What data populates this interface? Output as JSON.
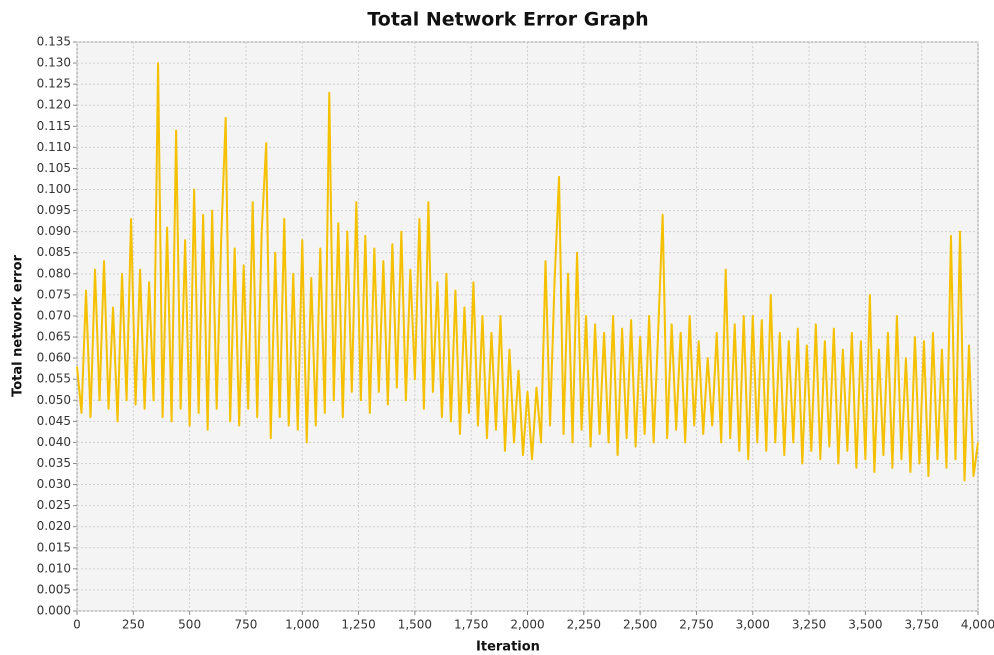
{
  "chart_data": {
    "type": "line",
    "title": "Total Network Error Graph",
    "x_label": "Iteration",
    "y_label": "Total network error",
    "grid": true,
    "xlim": [
      0,
      4000
    ],
    "ylim": [
      0,
      0.135
    ],
    "xticks": [
      0,
      250,
      500,
      750,
      {
        "value": 1000,
        "label": "1,000"
      },
      {
        "value": 1250,
        "label": "1,250"
      },
      {
        "value": 1500,
        "label": "1,500"
      },
      {
        "value": 1750,
        "label": "1,750"
      },
      {
        "value": 2000,
        "label": "2,000"
      },
      {
        "value": 2250,
        "label": "2,250"
      },
      {
        "value": 2500,
        "label": "2,500"
      },
      {
        "value": 2750,
        "label": "2,750"
      },
      {
        "value": 3000,
        "label": "3,000"
      },
      {
        "value": 3250,
        "label": "3,250"
      },
      {
        "value": 3500,
        "label": "3,500"
      },
      {
        "value": 3750,
        "label": "3,750"
      },
      {
        "value": 4000,
        "label": "4,000"
      }
    ],
    "yticks": [
      {
        "value": 0,
        "label": "0.000"
      },
      {
        "value": 0.005,
        "label": "0.005"
      },
      {
        "value": 0.01,
        "label": "0.010"
      },
      {
        "value": 0.015,
        "label": "0.015"
      },
      {
        "value": 0.02,
        "label": "0.020"
      },
      {
        "value": 0.025,
        "label": "0.025"
      },
      {
        "value": 0.03,
        "label": "0.030"
      },
      {
        "value": 0.035,
        "label": "0.035"
      },
      {
        "value": 0.04,
        "label": "0.040"
      },
      {
        "value": 0.045,
        "label": "0.045"
      },
      {
        "value": 0.05,
        "label": "0.050"
      },
      {
        "value": 0.055,
        "label": "0.055"
      },
      {
        "value": 0.06,
        "label": "0.060"
      },
      {
        "value": 0.065,
        "label": "0.065"
      },
      {
        "value": 0.07,
        "label": "0.070"
      },
      {
        "value": 0.075,
        "label": "0.075"
      },
      {
        "value": 0.08,
        "label": "0.080"
      },
      {
        "value": 0.085,
        "label": "0.085"
      },
      {
        "value": 0.09,
        "label": "0.090"
      },
      {
        "value": 0.095,
        "label": "0.095"
      },
      {
        "value": 0.1,
        "label": "0.100"
      },
      {
        "value": 0.105,
        "label": "0.105"
      },
      {
        "value": 0.11,
        "label": "0.110"
      },
      {
        "value": 0.115,
        "label": "0.115"
      },
      {
        "value": 0.12,
        "label": "0.120"
      },
      {
        "value": 0.125,
        "label": "0.125"
      },
      {
        "value": 0.13,
        "label": "0.130"
      },
      {
        "value": 0.135,
        "label": "0.135"
      }
    ],
    "x": [
      0,
      20,
      40,
      60,
      80,
      100,
      120,
      140,
      160,
      180,
      200,
      220,
      240,
      260,
      280,
      300,
      320,
      340,
      360,
      380,
      400,
      420,
      440,
      460,
      480,
      500,
      520,
      540,
      560,
      580,
      600,
      620,
      640,
      660,
      680,
      700,
      720,
      740,
      760,
      780,
      800,
      820,
      840,
      860,
      880,
      900,
      920,
      940,
      960,
      980,
      1000,
      1020,
      1040,
      1060,
      1080,
      1100,
      1120,
      1140,
      1160,
      1180,
      1200,
      1220,
      1240,
      1260,
      1280,
      1300,
      1320,
      1340,
      1360,
      1380,
      1400,
      1420,
      1440,
      1460,
      1480,
      1500,
      1520,
      1540,
      1560,
      1580,
      1600,
      1620,
      1640,
      1660,
      1680,
      1700,
      1720,
      1740,
      1760,
      1780,
      1800,
      1820,
      1840,
      1860,
      1880,
      1900,
      1920,
      1940,
      1960,
      1980,
      2000,
      2020,
      2040,
      2060,
      2080,
      2100,
      2120,
      2140,
      2160,
      2180,
      2200,
      2220,
      2240,
      2260,
      2280,
      2300,
      2320,
      2340,
      2360,
      2380,
      2400,
      2420,
      2440,
      2460,
      2480,
      2500,
      2520,
      2540,
      2560,
      2580,
      2600,
      2620,
      2640,
      2660,
      2680,
      2700,
      2720,
      2740,
      2760,
      2780,
      2800,
      2820,
      2840,
      2860,
      2880,
      2900,
      2920,
      2940,
      2960,
      2980,
      3000,
      3020,
      3040,
      3060,
      3080,
      3100,
      3120,
      3140,
      3160,
      3180,
      3200,
      3220,
      3240,
      3260,
      3280,
      3300,
      3320,
      3340,
      3360,
      3380,
      3400,
      3420,
      3440,
      3460,
      3480,
      3500,
      3520,
      3540,
      3560,
      3580,
      3600,
      3620,
      3640,
      3660,
      3680,
      3700,
      3720,
      3740,
      3760,
      3780,
      3800,
      3820,
      3840,
      3860,
      3880,
      3900,
      3920,
      3940,
      3960,
      3980,
      4000
    ],
    "series": [
      {
        "color": "#f5c000",
        "values": [
          0.058,
          0.047,
          0.076,
          0.046,
          0.081,
          0.05,
          0.083,
          0.048,
          0.072,
          0.045,
          0.08,
          0.05,
          0.093,
          0.049,
          0.081,
          0.048,
          0.078,
          0.05,
          0.13,
          0.046,
          0.091,
          0.045,
          0.114,
          0.048,
          0.088,
          0.044,
          0.1,
          0.047,
          0.094,
          0.043,
          0.095,
          0.048,
          0.088,
          0.117,
          0.045,
          0.086,
          0.044,
          0.082,
          0.048,
          0.097,
          0.046,
          0.09,
          0.111,
          0.041,
          0.085,
          0.046,
          0.093,
          0.044,
          0.08,
          0.043,
          0.088,
          0.04,
          0.079,
          0.044,
          0.086,
          0.047,
          0.123,
          0.05,
          0.092,
          0.046,
          0.09,
          0.052,
          0.097,
          0.05,
          0.089,
          0.047,
          0.086,
          0.052,
          0.083,
          0.049,
          0.087,
          0.053,
          0.09,
          0.05,
          0.081,
          0.055,
          0.093,
          0.048,
          0.097,
          0.052,
          0.078,
          0.046,
          0.08,
          0.045,
          0.076,
          0.042,
          0.072,
          0.047,
          0.078,
          0.044,
          0.07,
          0.041,
          0.066,
          0.043,
          0.07,
          0.038,
          0.062,
          0.04,
          0.057,
          0.037,
          0.052,
          0.036,
          0.053,
          0.04,
          0.083,
          0.044,
          0.078,
          0.103,
          0.042,
          0.08,
          0.04,
          0.085,
          0.043,
          0.07,
          0.039,
          0.068,
          0.042,
          0.066,
          0.04,
          0.07,
          0.037,
          0.067,
          0.041,
          0.069,
          0.039,
          0.065,
          0.042,
          0.07,
          0.04,
          0.066,
          0.094,
          0.041,
          0.068,
          0.043,
          0.066,
          0.04,
          0.07,
          0.044,
          0.064,
          0.042,
          0.06,
          0.044,
          0.066,
          0.04,
          0.081,
          0.041,
          0.068,
          0.038,
          0.07,
          0.036,
          0.07,
          0.04,
          0.069,
          0.038,
          0.075,
          0.04,
          0.066,
          0.037,
          0.064,
          0.04,
          0.067,
          0.035,
          0.063,
          0.038,
          0.068,
          0.036,
          0.064,
          0.039,
          0.067,
          0.035,
          0.062,
          0.038,
          0.066,
          0.034,
          0.064,
          0.036,
          0.075,
          0.033,
          0.062,
          0.037,
          0.066,
          0.034,
          0.07,
          0.036,
          0.06,
          0.033,
          0.065,
          0.035,
          0.064,
          0.032,
          0.066,
          0.036,
          0.062,
          0.034,
          0.089,
          0.036,
          0.09,
          0.031,
          0.063,
          0.032,
          0.04
        ]
      }
    ]
  }
}
